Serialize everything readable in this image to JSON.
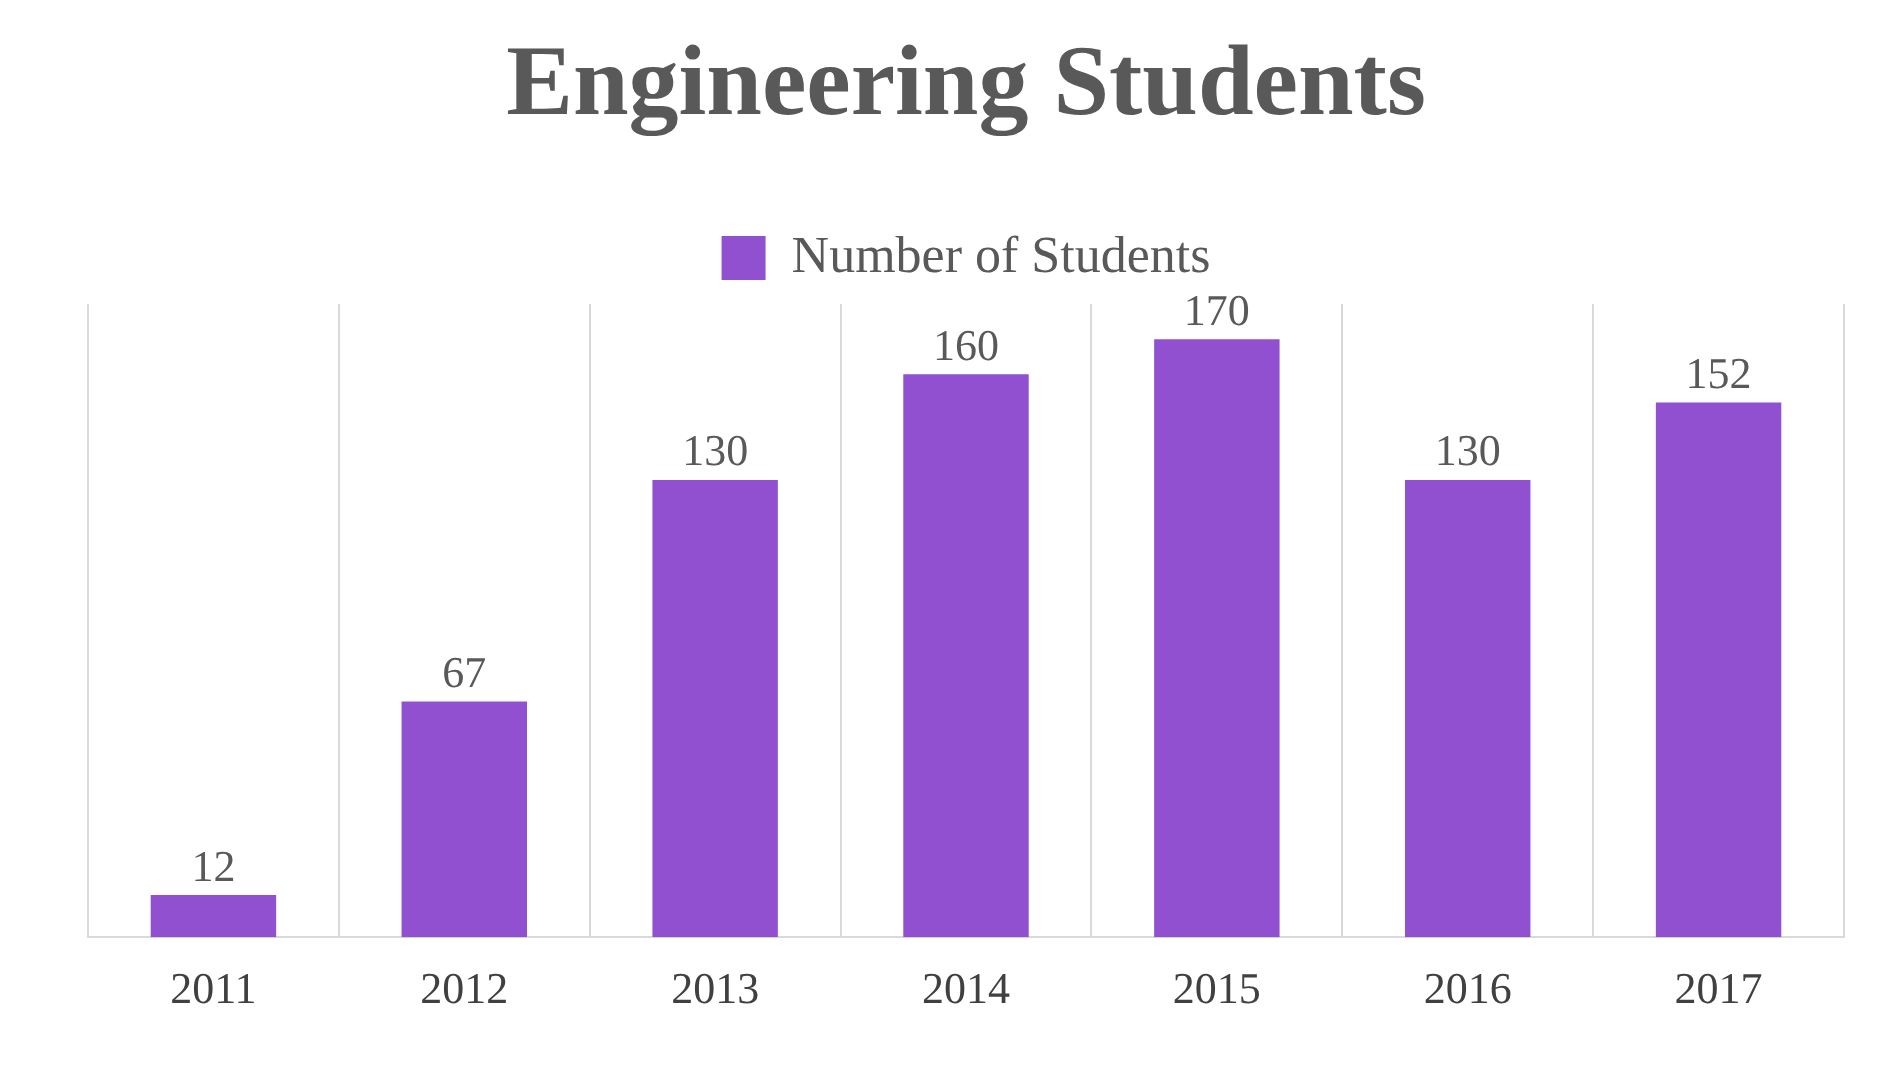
{
  "chart_data": {
    "type": "bar",
    "title": "Engineering Students",
    "categories": [
      "2011",
      "2012",
      "2013",
      "2014",
      "2015",
      "2016",
      "2017"
    ],
    "series": [
      {
        "name": "Number of Students",
        "color": "#9150d0",
        "values": [
          12,
          67,
          130,
          160,
          170,
          130,
          152
        ]
      }
    ],
    "data_labels": true,
    "grid": "x",
    "legend": "top"
  }
}
